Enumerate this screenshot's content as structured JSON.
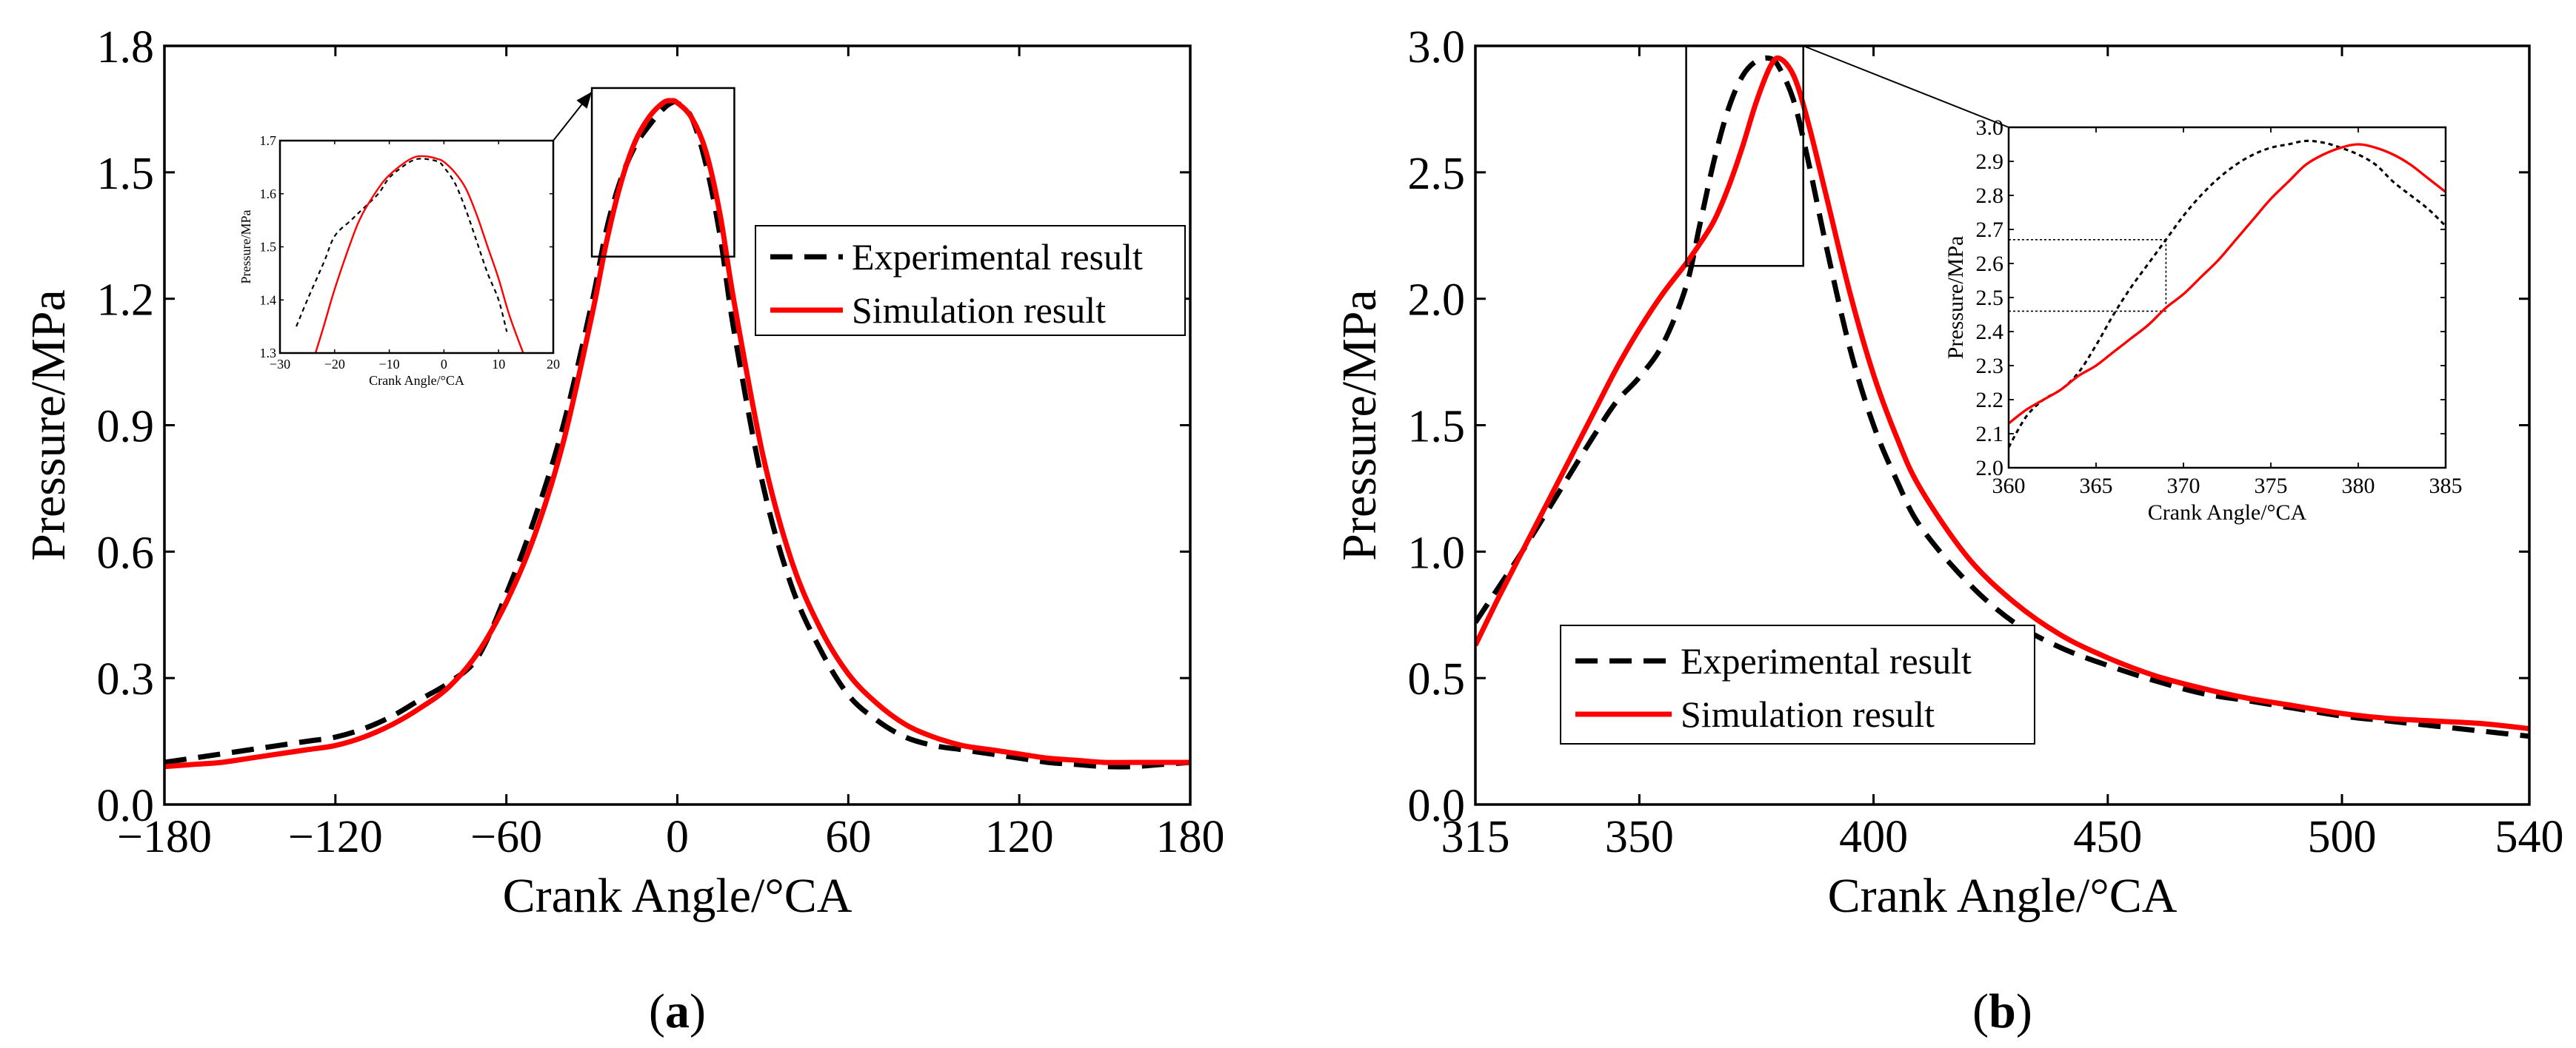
{
  "chart_data": [
    {
      "id": "a",
      "type": "line",
      "caption": {
        "open": "(",
        "letter": "a",
        "close": ")"
      },
      "xlabel": "Crank Angle/°CA",
      "ylabel": "Pressure/MPa",
      "xlim": [
        -180,
        180
      ],
      "ylim": [
        0,
        1.8
      ],
      "xticks": [
        -180,
        -120,
        -60,
        0,
        60,
        120,
        180
      ],
      "xtick_labels": [
        "−180",
        "−120",
        "−60",
        "0",
        "60",
        "120",
        "180"
      ],
      "yticks": [
        0,
        0.3,
        0.6,
        0.9,
        1.2,
        1.5,
        1.8
      ],
      "ytick_labels": [
        "0.0",
        "0.3",
        "0.6",
        "0.9",
        "1.2",
        "1.5",
        "1.8"
      ],
      "legend": {
        "placement": "right",
        "entries": [
          "Experimental result",
          "Simulation result"
        ]
      },
      "series": [
        {
          "name": "Experimental result",
          "style": "dashed",
          "color": "#000000",
          "x": [
            -180,
            -170,
            -160,
            -150,
            -140,
            -130,
            -120,
            -110,
            -100,
            -90,
            -80,
            -70,
            -60,
            -50,
            -40,
            -30,
            -25,
            -20,
            -15,
            -10,
            -5,
            -2,
            0,
            5,
            10,
            15,
            20,
            30,
            40,
            50,
            60,
            70,
            80,
            90,
            100,
            110,
            120,
            130,
            140,
            150,
            160,
            170,
            180
          ],
          "y": [
            0.1,
            0.11,
            0.12,
            0.13,
            0.14,
            0.15,
            0.16,
            0.18,
            0.21,
            0.25,
            0.29,
            0.35,
            0.5,
            0.68,
            0.9,
            1.19,
            1.36,
            1.48,
            1.56,
            1.61,
            1.65,
            1.665,
            1.665,
            1.63,
            1.52,
            1.35,
            1.12,
            0.76,
            0.52,
            0.37,
            0.26,
            0.2,
            0.16,
            0.14,
            0.13,
            0.12,
            0.11,
            0.1,
            0.095,
            0.09,
            0.09,
            0.095,
            0.1
          ]
        },
        {
          "name": "Simulation result",
          "style": "solid",
          "color": "#ff0000",
          "x": [
            -180,
            -170,
            -160,
            -150,
            -140,
            -130,
            -120,
            -110,
            -100,
            -90,
            -80,
            -70,
            -60,
            -50,
            -40,
            -30,
            -25,
            -20,
            -15,
            -10,
            -5,
            -2,
            0,
            5,
            10,
            15,
            20,
            30,
            40,
            50,
            60,
            70,
            80,
            90,
            100,
            110,
            120,
            130,
            140,
            150,
            160,
            170,
            180
          ],
          "y": [
            0.09,
            0.095,
            0.1,
            0.11,
            0.12,
            0.13,
            0.14,
            0.16,
            0.19,
            0.23,
            0.28,
            0.36,
            0.48,
            0.64,
            0.86,
            1.16,
            1.33,
            1.47,
            1.57,
            1.63,
            1.665,
            1.67,
            1.665,
            1.63,
            1.55,
            1.4,
            1.19,
            0.83,
            0.58,
            0.42,
            0.31,
            0.24,
            0.19,
            0.16,
            0.14,
            0.13,
            0.12,
            0.11,
            0.105,
            0.1,
            0.1,
            0.1,
            0.1
          ]
        }
      ],
      "zoom_box": {
        "xlim": [
          -30,
          20
        ],
        "ylim": [
          1.3,
          1.7
        ]
      },
      "inset": {
        "xlabel": "Crank Angle/°CA",
        "ylabel": "Pressure/MPa",
        "xlim": [
          -30,
          20
        ],
        "ylim": [
          1.3,
          1.7
        ],
        "xticks": [
          -30,
          -20,
          -10,
          0,
          10,
          20
        ],
        "xtick_labels": [
          "−30",
          "−20",
          "−10",
          "0",
          "10",
          "20"
        ],
        "yticks": [
          1.3,
          1.4,
          1.5,
          1.6,
          1.7
        ],
        "ytick_labels": [
          "1.3",
          "1.4",
          "1.5",
          "1.6",
          "1.7"
        ],
        "series": [
          {
            "name": "Experimental result",
            "style": "dashed",
            "color": "#000000",
            "x": [
              -27,
              -25,
              -22,
              -20,
              -17,
              -15,
              -12,
              -10,
              -7,
              -5,
              -3,
              -1,
              0,
              2,
              4,
              6,
              8,
              10,
              11.5
            ],
            "y": [
              1.35,
              1.4,
              1.47,
              1.52,
              1.55,
              1.57,
              1.6,
              1.63,
              1.655,
              1.665,
              1.665,
              1.66,
              1.65,
              1.62,
              1.57,
              1.51,
              1.45,
              1.4,
              1.34
            ]
          },
          {
            "name": "Simulation result",
            "style": "solid",
            "color": "#ff0000",
            "x": [
              -23.5,
              -22,
              -20,
              -17,
              -15,
              -12,
              -10,
              -7,
              -5,
              -3,
              -1,
              0,
              2,
              4,
              6,
              8,
              10,
              12,
              14.5
            ],
            "y": [
              1.3,
              1.35,
              1.42,
              1.51,
              1.56,
              1.61,
              1.635,
              1.66,
              1.67,
              1.67,
              1.665,
              1.66,
              1.64,
              1.61,
              1.56,
              1.5,
              1.44,
              1.37,
              1.3
            ]
          }
        ]
      }
    },
    {
      "id": "b",
      "type": "line",
      "caption": {
        "open": "(",
        "letter": "b",
        "close": ")"
      },
      "xlabel": "Crank Angle/°CA",
      "ylabel": "Pressure/MPa",
      "xlim": [
        315,
        540
      ],
      "ylim": [
        0,
        3.0
      ],
      "xticks": [
        315,
        350,
        400,
        450,
        500,
        540
      ],
      "xtick_labels": [
        "315",
        "350",
        "400",
        "450",
        "500",
        "540"
      ],
      "yticks": [
        0,
        0.5,
        1.0,
        1.5,
        2.0,
        2.5,
        3.0
      ],
      "ytick_labels": [
        "0.0",
        "0.5",
        "1.0",
        "1.5",
        "2.0",
        "2.5",
        "3.0"
      ],
      "legend": {
        "placement": "bottom-left",
        "entries": [
          "Experimental result",
          "Simulation result"
        ]
      },
      "series": [
        {
          "name": "Experimental result",
          "style": "dashed",
          "color": "#000000",
          "x": [
            315,
            320,
            325,
            330,
            335,
            340,
            345,
            350,
            355,
            360,
            363,
            366,
            369,
            372,
            375,
            378,
            380,
            383,
            386,
            390,
            395,
            400,
            405,
            410,
            420,
            430,
            440,
            450,
            460,
            470,
            480,
            490,
            500,
            510,
            520,
            530,
            540
          ],
          "y": [
            0.72,
            0.86,
            1.0,
            1.15,
            1.3,
            1.45,
            1.59,
            1.69,
            1.82,
            2.05,
            2.3,
            2.55,
            2.75,
            2.88,
            2.94,
            2.95,
            2.91,
            2.78,
            2.55,
            2.2,
            1.8,
            1.5,
            1.28,
            1.1,
            0.88,
            0.72,
            0.62,
            0.55,
            0.49,
            0.44,
            0.41,
            0.38,
            0.35,
            0.33,
            0.31,
            0.29,
            0.27
          ]
        },
        {
          "name": "Simulation result",
          "style": "solid",
          "color": "#ff0000",
          "x": [
            315,
            320,
            325,
            330,
            335,
            340,
            345,
            350,
            355,
            360,
            363,
            366,
            369,
            372,
            375,
            378,
            380,
            383,
            386,
            390,
            395,
            400,
            405,
            410,
            420,
            430,
            440,
            450,
            460,
            470,
            480,
            490,
            500,
            510,
            520,
            530,
            540
          ],
          "y": [
            0.63,
            0.82,
            1.0,
            1.18,
            1.36,
            1.54,
            1.72,
            1.88,
            2.02,
            2.14,
            2.22,
            2.31,
            2.44,
            2.6,
            2.78,
            2.92,
            2.95,
            2.88,
            2.7,
            2.4,
            2.02,
            1.7,
            1.45,
            1.25,
            0.98,
            0.8,
            0.67,
            0.58,
            0.51,
            0.46,
            0.42,
            0.39,
            0.36,
            0.34,
            0.33,
            0.32,
            0.3
          ]
        }
      ],
      "zoom_box": {
        "xlim": [
          360,
          385
        ],
        "ylim": [
          2.13,
          3.0
        ]
      },
      "inset": {
        "xlabel": "Crank Angle/°CA",
        "ylabel": "Pressure/MPa",
        "xlim": [
          360,
          385
        ],
        "ylim": [
          2.0,
          3.0
        ],
        "xticks": [
          360,
          365,
          370,
          375,
          380,
          385
        ],
        "xtick_labels": [
          "360",
          "365",
          "370",
          "375",
          "380",
          "385"
        ],
        "yticks": [
          2.0,
          2.1,
          2.2,
          2.3,
          2.4,
          2.5,
          2.6,
          2.7,
          2.8,
          2.9,
          3.0
        ],
        "ytick_labels": [
          "2.0",
          "2.1",
          "2.2",
          "2.3",
          "2.4",
          "2.5",
          "2.6",
          "2.7",
          "2.8",
          "2.9",
          "3.0"
        ],
        "guide": {
          "x": 369,
          "y_low": 2.46,
          "y_high": 2.67
        },
        "series": [
          {
            "name": "Experimental result",
            "style": "dashed",
            "color": "#000000",
            "x": [
              360,
              361,
              362,
              363,
              364,
              365,
              366,
              367,
              368,
              369,
              370,
              371,
              372,
              373,
              374,
              375,
              376,
              377,
              378,
              379,
              380,
              381,
              382,
              383,
              384,
              385
            ],
            "y": [
              2.06,
              2.15,
              2.2,
              2.23,
              2.28,
              2.36,
              2.45,
              2.53,
              2.6,
              2.67,
              2.74,
              2.8,
              2.85,
              2.89,
              2.92,
              2.94,
              2.95,
              2.96,
              2.955,
              2.94,
              2.92,
              2.89,
              2.84,
              2.8,
              2.76,
              2.71
            ]
          },
          {
            "name": "Simulation result",
            "style": "solid",
            "color": "#ff0000",
            "x": [
              360,
              361,
              362,
              363,
              364,
              365,
              366,
              367,
              368,
              369,
              370,
              371,
              372,
              373,
              374,
              375,
              376,
              377,
              378,
              379,
              380,
              381,
              382,
              383,
              384,
              385
            ],
            "y": [
              2.13,
              2.17,
              2.2,
              2.23,
              2.27,
              2.3,
              2.34,
              2.38,
              2.42,
              2.47,
              2.51,
              2.56,
              2.61,
              2.67,
              2.73,
              2.79,
              2.84,
              2.89,
              2.92,
              2.94,
              2.95,
              2.94,
              2.92,
              2.89,
              2.85,
              2.81
            ]
          }
        ]
      }
    }
  ]
}
